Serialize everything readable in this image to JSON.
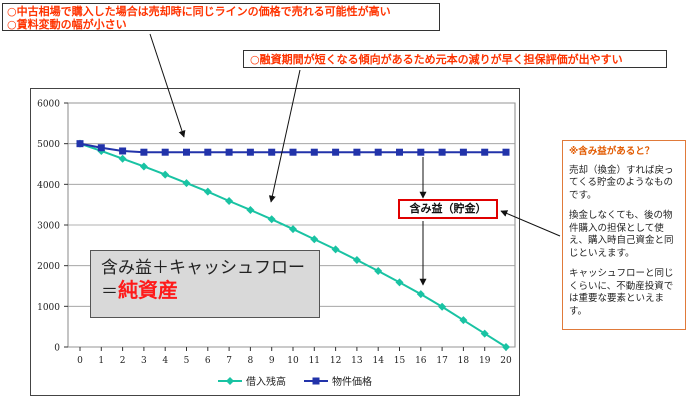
{
  "callouts": {
    "top_line1": "○中古相場で購入した場合は売却時に同じラインの価格で売れる可能性が高い",
    "top_line2": "○賃料変動の幅が小さい",
    "middle": "○融資期間が短くなる傾向があるため元本の減りが早く担保評価が出やすい"
  },
  "summary": {
    "line1": "含み益＋キャッシュフロー",
    "prefix": "＝",
    "emphasis": "純資産"
  },
  "gain_label": "含み益（貯金）",
  "note": {
    "title": "※含み益があると？",
    "paragraphs": [
      "売却（換金）すれば戻ってくる貯金のようなものです。",
      "換金しなくても、後の物件購入の担保として使え、購入時自己資金と同じといえます。",
      "キャッシュフローと同じくらいに、不動産投資では重要な要素といえます。"
    ]
  },
  "colors": {
    "loan": "#19c3a3",
    "property": "#2233aa",
    "accent_red": "#ff1a1a",
    "callout_text": "#ff3300"
  },
  "chart_data": {
    "type": "line",
    "x": [
      0,
      1,
      2,
      3,
      4,
      5,
      6,
      7,
      8,
      9,
      10,
      11,
      12,
      13,
      14,
      15,
      16,
      17,
      18,
      19,
      20
    ],
    "ylim": [
      0,
      6000
    ],
    "yticks": [
      "0",
      "1000",
      "2000",
      "3000",
      "4000",
      "5000",
      "6000"
    ],
    "xticks": [
      "0",
      "1",
      "2",
      "3",
      "4",
      "5",
      "6",
      "7",
      "8",
      "9",
      "10",
      "11",
      "12",
      "13",
      "14",
      "15",
      "16",
      "17",
      "18",
      "19",
      "20"
    ],
    "grid": true,
    "legend_position": "bottom",
    "series": [
      {
        "name": "借入残高",
        "color": "#19c3a3",
        "marker": "diamond",
        "values": [
          5000,
          4820,
          4630,
          4440,
          4240,
          4030,
          3820,
          3590,
          3370,
          3140,
          2900,
          2650,
          2400,
          2140,
          1870,
          1590,
          1300,
          990,
          660,
          330,
          0
        ]
      },
      {
        "name": "物件価格",
        "color": "#2233aa",
        "marker": "square",
        "values": [
          5000,
          4900,
          4820,
          4790,
          4790,
          4790,
          4790,
          4790,
          4790,
          4790,
          4790,
          4790,
          4790,
          4790,
          4790,
          4790,
          4790,
          4790,
          4790,
          4790,
          4790
        ]
      }
    ]
  }
}
